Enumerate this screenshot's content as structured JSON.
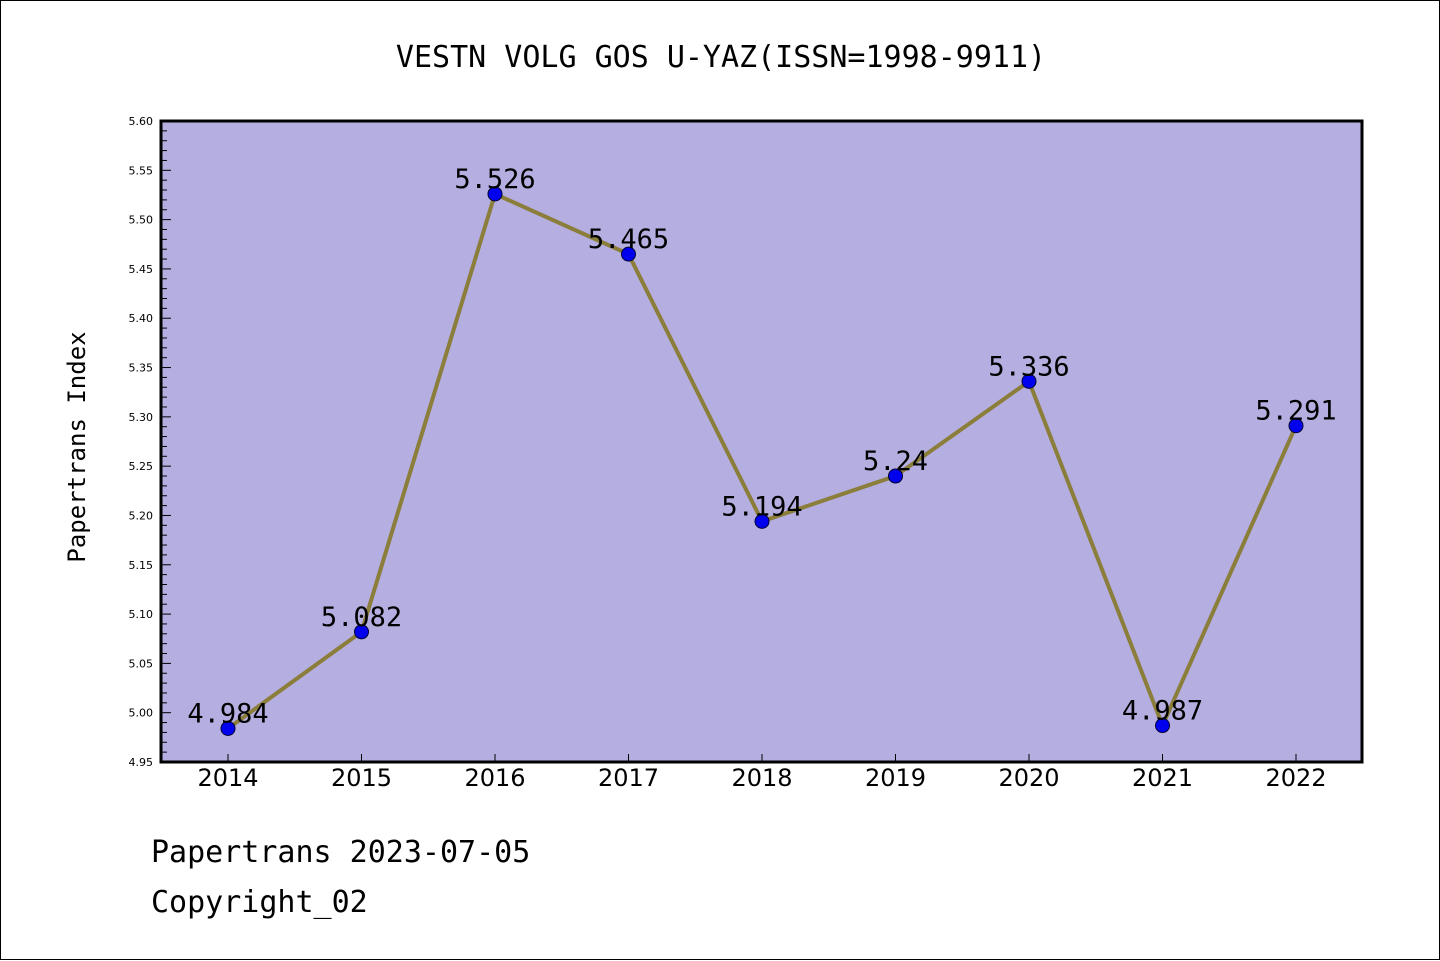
{
  "chart_data": {
    "type": "line",
    "title": "VESTN VOLG GOS U-YAZ(ISSN=1998-9911)",
    "xlabel": "",
    "ylabel": "Papertrans Index",
    "categories": [
      "2014",
      "2015",
      "2016",
      "2017",
      "2018",
      "2019",
      "2020",
      "2021",
      "2022"
    ],
    "series": [
      {
        "values": [
          4.984,
          5.082,
          5.526,
          5.465,
          5.194,
          5.24,
          5.336,
          4.987,
          5.291
        ],
        "labels": [
          "4.984",
          "5.082",
          "5.526",
          "5.465",
          "5.194",
          "5.24",
          "5.336",
          "4.987",
          "5.291"
        ]
      }
    ],
    "ylim": [
      4.95,
      5.6
    ],
    "yticks": [
      "4.95",
      "5.00",
      "5.05",
      "5.10",
      "5.15",
      "5.20",
      "5.25",
      "5.30",
      "5.35",
      "5.40",
      "5.45",
      "5.50",
      "5.55",
      "5.60"
    ],
    "grid": false,
    "colors": {
      "plot_background": "#b5aee1",
      "line": "#8b7d3a",
      "marker": "#0000ee"
    }
  },
  "footer": {
    "line1": "Papertrans 2023-07-05",
    "line2": "Copyright_02"
  }
}
